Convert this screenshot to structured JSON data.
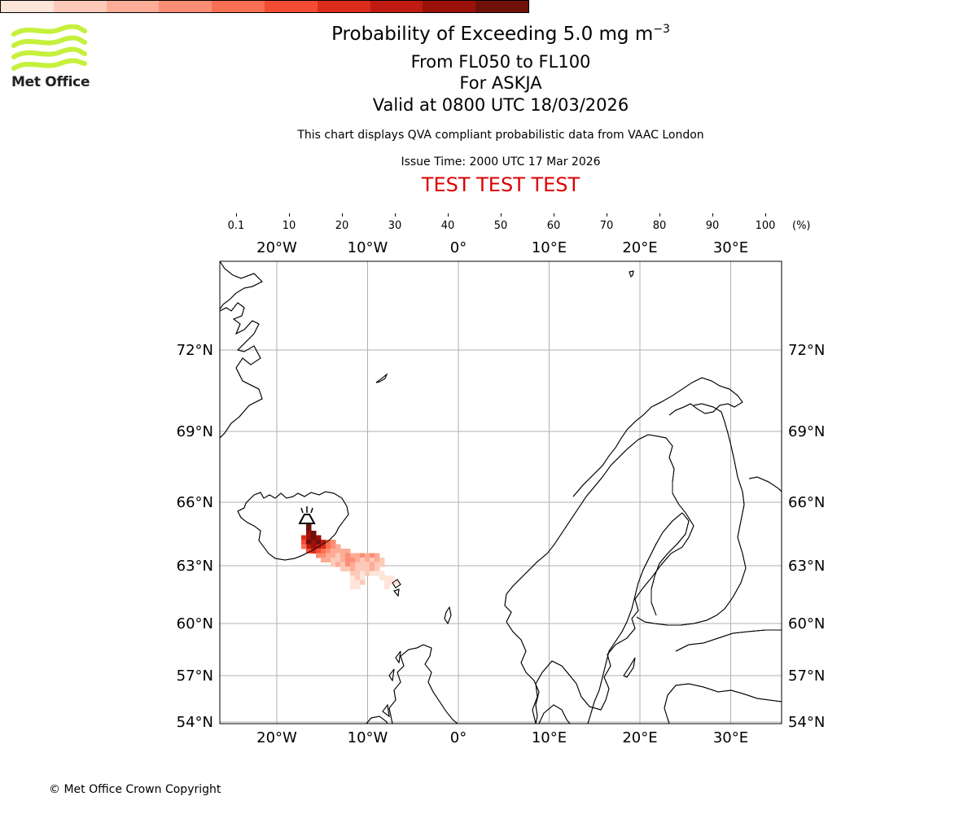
{
  "header": {
    "title_prefix": "Probability of Exceeding 5.0 mg m",
    "title_exponent": "−3",
    "level_range": "From FL050 to FL100",
    "volcano": "For ASKJA",
    "valid_time": "Valid at 0800 UTC 18/03/2026",
    "subtitle": "This chart displays QVA compliant probabilistic data from VAAC London",
    "issue_time": "Issue Time: 2000 UTC 17 Mar 2026",
    "test_banner": "TEST TEST TEST"
  },
  "logo": {
    "name": "Met Office"
  },
  "colorbar": {
    "ticks": [
      "0.1",
      "10",
      "20",
      "30",
      "40",
      "50",
      "60",
      "70",
      "80",
      "90",
      "100"
    ],
    "unit": "(%)",
    "colors": [
      "#fee5d9",
      "#fdcab9",
      "#fcac97",
      "#fb8e74",
      "#f96f54",
      "#f44c33",
      "#dc2c1c",
      "#bf1b12",
      "#9a1109",
      "#70100a"
    ]
  },
  "map": {
    "lon_labels": [
      "20°W",
      "10°W",
      "0°",
      "10°E",
      "20°E",
      "30°E"
    ],
    "lat_labels": [
      "72°N",
      "69°N",
      "66°N",
      "63°N",
      "60°N",
      "57°N",
      "54°N"
    ],
    "lon_values": [
      -20,
      -10,
      0,
      10,
      20,
      30
    ],
    "lat_values": [
      72,
      69,
      66,
      63,
      60,
      57,
      54
    ],
    "grid_color": "#b0b0b0",
    "volcano_marker": "volcano-icon"
  },
  "footer": {
    "copyright": "© Met Office Crown Copyright"
  }
}
